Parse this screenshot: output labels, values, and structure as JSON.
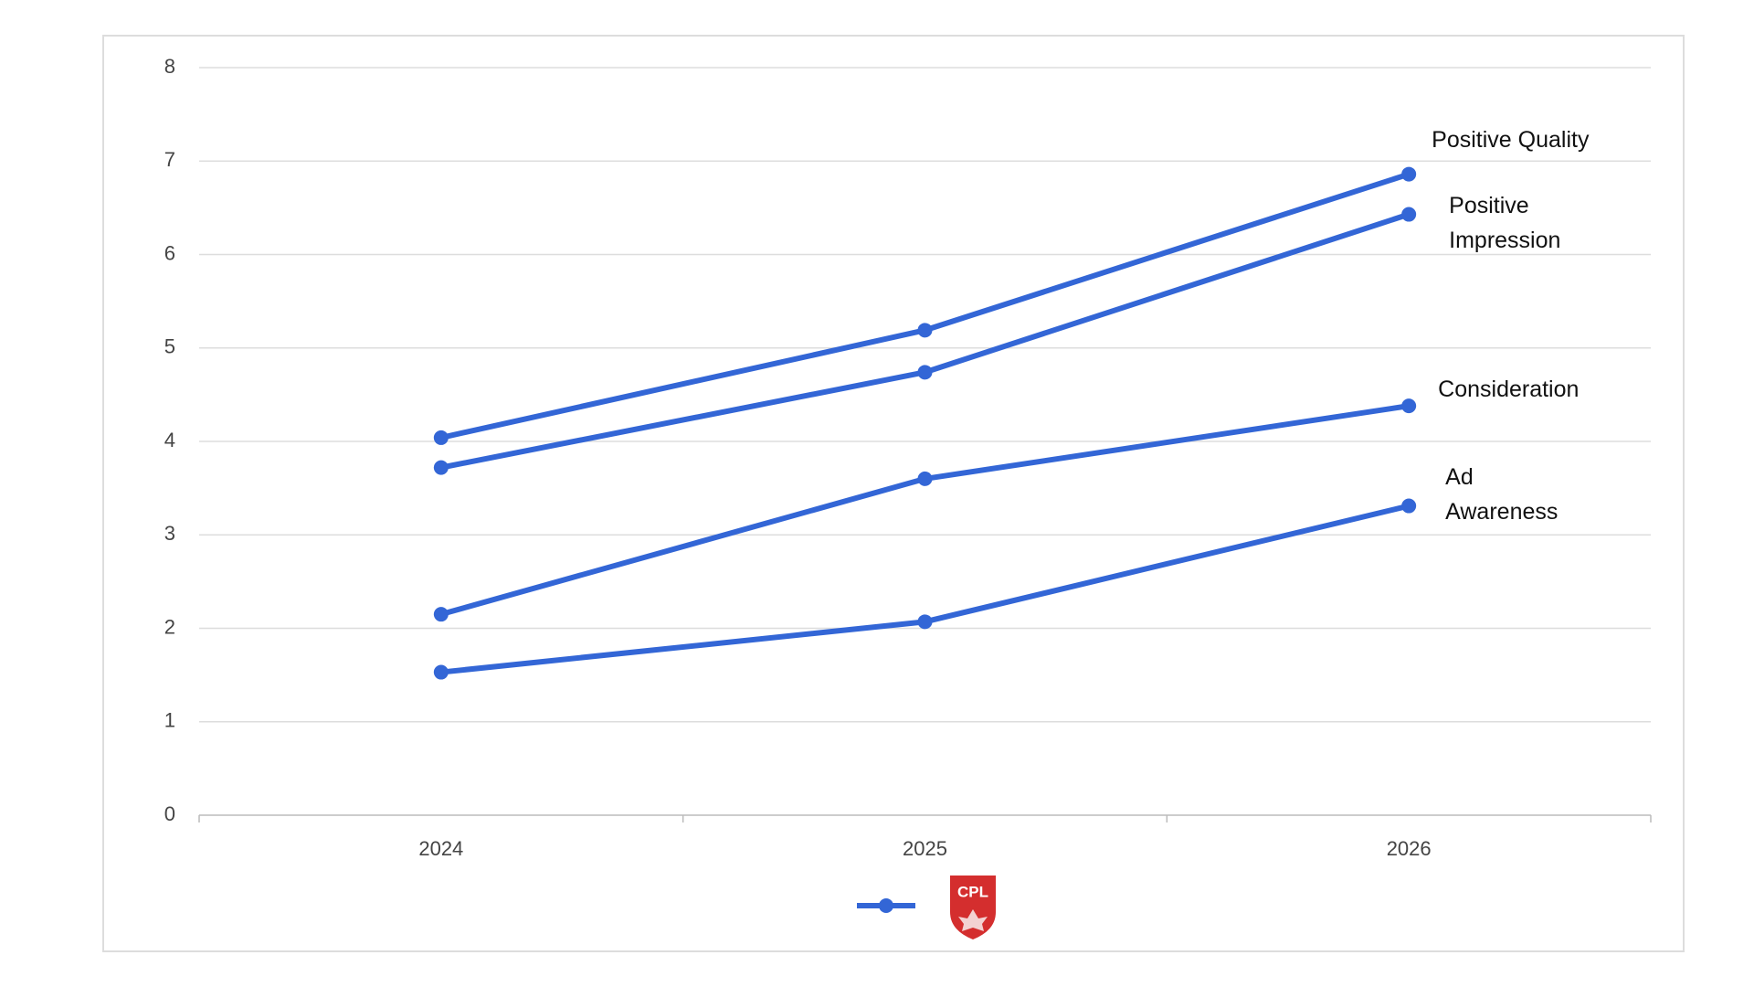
{
  "chart_data": {
    "type": "line",
    "categories": [
      "2024",
      "2025",
      "2026"
    ],
    "series": [
      {
        "name": "Positive Quality",
        "color": "#3366d6",
        "values": [
          4.04,
          5.19,
          6.86
        ]
      },
      {
        "name": "Positive Impression",
        "color": "#3366d6",
        "values": [
          3.72,
          4.74,
          6.43
        ]
      },
      {
        "name": "Consideration",
        "color": "#3366d6",
        "values": [
          2.15,
          3.6,
          4.38
        ]
      },
      {
        "name": "Ad Awareness",
        "color": "#3366d6",
        "values": [
          1.53,
          2.07,
          3.31
        ]
      }
    ],
    "ylim": [
      0,
      8
    ],
    "yticks": [
      0,
      1,
      2,
      3,
      4,
      5,
      6,
      7,
      8
    ],
    "grid": true,
    "legend_label": "CPL"
  }
}
